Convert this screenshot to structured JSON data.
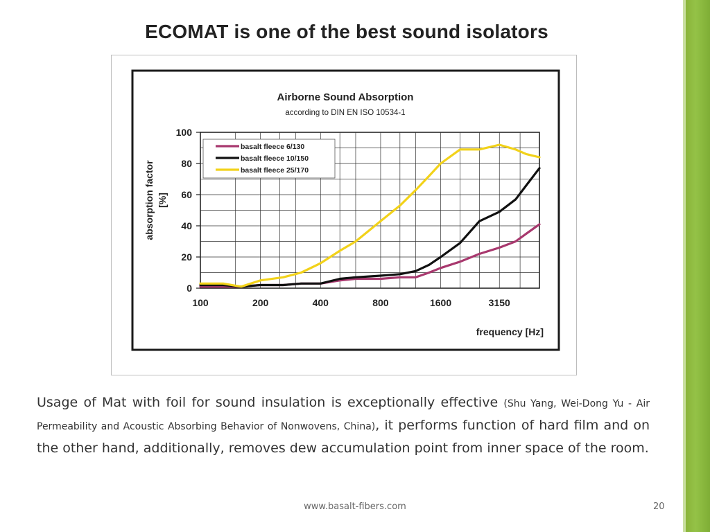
{
  "slide": {
    "title": "ECOMAT is one of the best sound isolators",
    "body_main": "Usage of Mat with foil for sound insulation is exceptionally effective ",
    "body_citation": "(Shu Yang, Wei-Dong Yu - Air Permeability and Acoustic Absorbing Behavior of Nonwovens, China)",
    "body_tail": ", it performs function of hard film and on the other hand, additionally, removes dew accumulation point from inner space of the room.",
    "footer_url": "www.basalt-fibers.com",
    "page_number": "20"
  },
  "colors": {
    "accent_green": "#8ab43a",
    "series_magenta": "#a8386e",
    "series_black": "#111111",
    "series_yellow": "#f2d21a"
  },
  "chart_data": {
    "type": "line",
    "title": "Airborne Sound Absorption",
    "subtitle": "according to DIN EN ISO 10534-1",
    "xlabel": "frequency [Hz]",
    "ylabel_line1": "absorption factor",
    "ylabel_line2": "[%]",
    "x_scale": "log",
    "xlim": [
      100,
      5000
    ],
    "ylim": [
      0,
      100
    ],
    "x_ticks": [
      "100",
      "200",
      "400",
      "800",
      "1600",
      "3150"
    ],
    "y_ticks": [
      "0",
      "20",
      "40",
      "60",
      "80",
      "100"
    ],
    "grid": true,
    "legend_position": "top-left",
    "series": [
      {
        "name": "basalt fleece 6/130",
        "color": "#a8386e",
        "points": [
          [
            100,
            1
          ],
          [
            130,
            1
          ],
          [
            160,
            1
          ],
          [
            200,
            2
          ],
          [
            260,
            2
          ],
          [
            320,
            3
          ],
          [
            400,
            3
          ],
          [
            500,
            5
          ],
          [
            600,
            6
          ],
          [
            800,
            6
          ],
          [
            1000,
            7
          ],
          [
            1200,
            7
          ],
          [
            1400,
            10
          ],
          [
            1600,
            13
          ],
          [
            2000,
            17
          ],
          [
            2500,
            22
          ],
          [
            3150,
            26
          ],
          [
            3800,
            30
          ],
          [
            4300,
            35
          ],
          [
            5000,
            41
          ]
        ]
      },
      {
        "name": "basalt fleece 10/150",
        "color": "#111111",
        "points": [
          [
            100,
            2
          ],
          [
            130,
            2
          ],
          [
            160,
            1
          ],
          [
            200,
            2
          ],
          [
            260,
            2
          ],
          [
            320,
            3
          ],
          [
            400,
            3
          ],
          [
            500,
            6
          ],
          [
            600,
            7
          ],
          [
            800,
            8
          ],
          [
            1000,
            9
          ],
          [
            1200,
            11
          ],
          [
            1400,
            15
          ],
          [
            1600,
            20
          ],
          [
            2000,
            29
          ],
          [
            2500,
            43
          ],
          [
            3150,
            49
          ],
          [
            3800,
            57
          ],
          [
            4300,
            66
          ],
          [
            5000,
            77
          ]
        ]
      },
      {
        "name": "basalt fleece 25/170",
        "color": "#f2d21a",
        "points": [
          [
            100,
            3
          ],
          [
            130,
            3
          ],
          [
            160,
            1
          ],
          [
            200,
            5
          ],
          [
            260,
            7
          ],
          [
            320,
            10
          ],
          [
            400,
            16
          ],
          [
            500,
            24
          ],
          [
            600,
            30
          ],
          [
            800,
            43
          ],
          [
            1000,
            53
          ],
          [
            1200,
            63
          ],
          [
            1400,
            72
          ],
          [
            1600,
            80
          ],
          [
            2000,
            89
          ],
          [
            2500,
            89
          ],
          [
            3150,
            92
          ],
          [
            3800,
            89
          ],
          [
            4300,
            86
          ],
          [
            5000,
            84
          ]
        ]
      }
    ]
  }
}
